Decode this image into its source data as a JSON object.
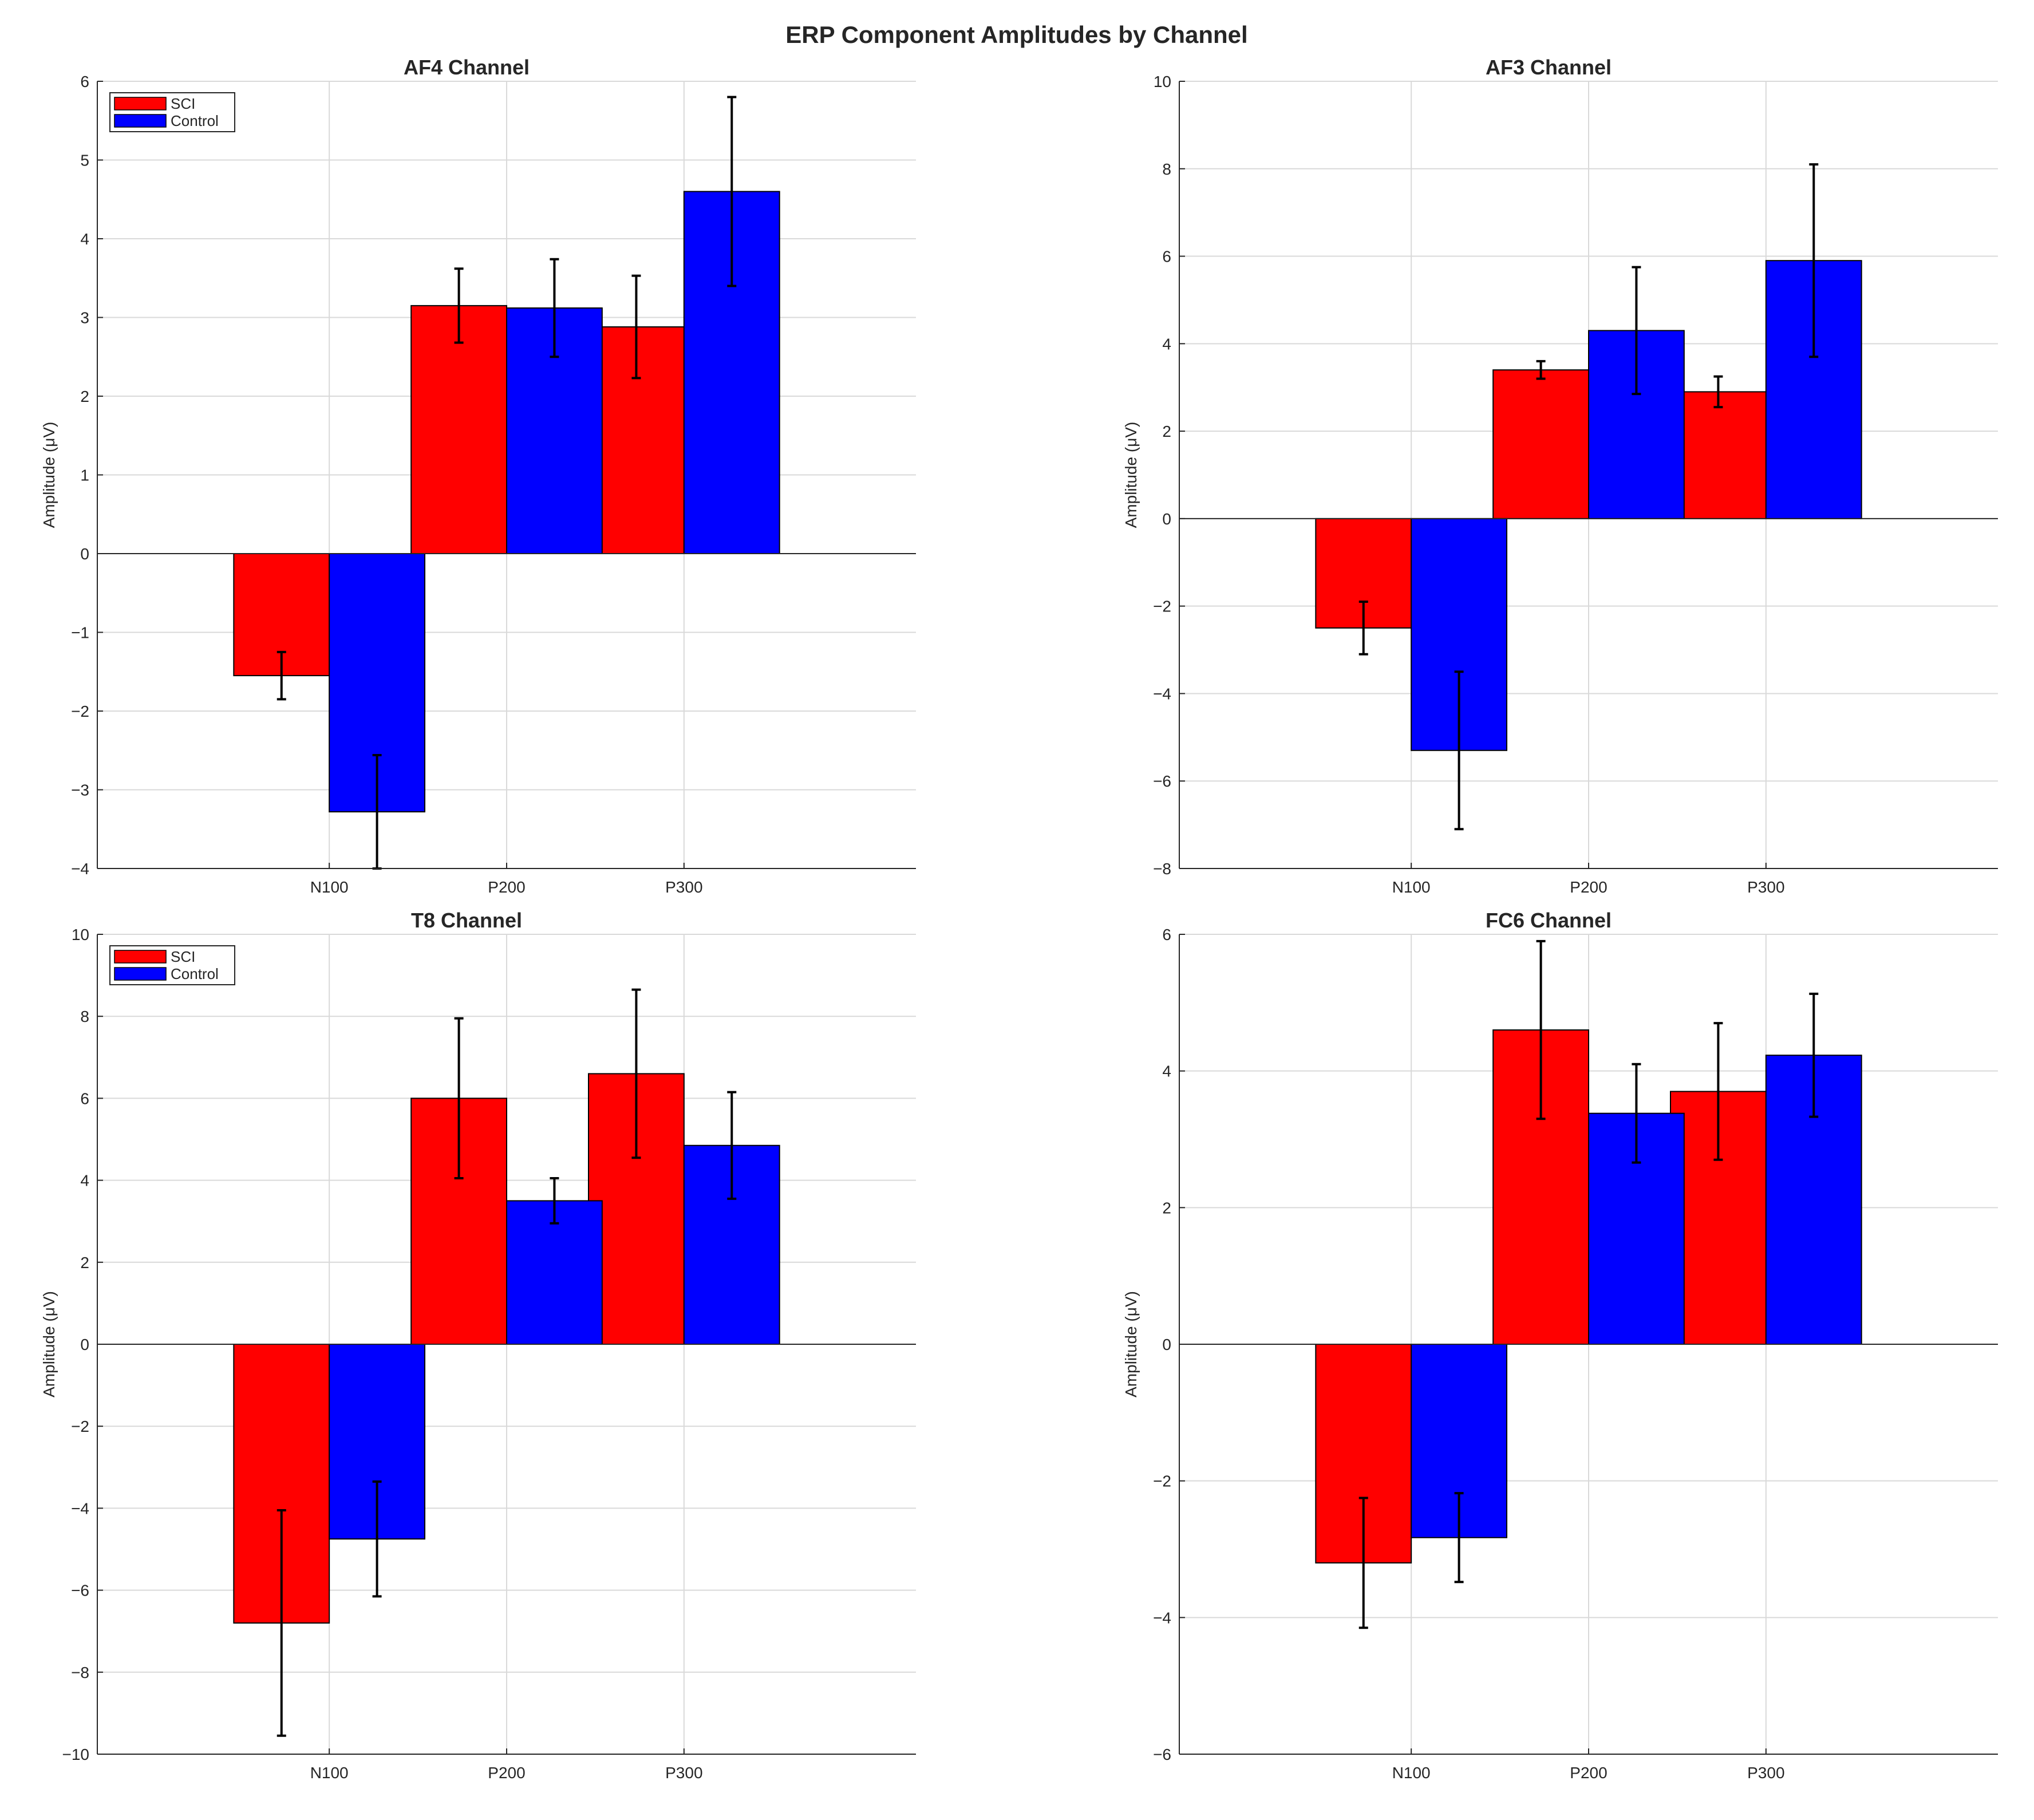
{
  "chart_data": {
    "type": "bar",
    "title": "ERP Component Amplitudes by Channel",
    "colors": {
      "SCI": "#ff0000",
      "Control": "#0000ff"
    },
    "subplots": [
      {
        "title": "AF4 Channel",
        "ylabel": "Amplitude (μV)",
        "ylim": [
          -4,
          6
        ],
        "yticks": [
          -4,
          -3,
          -2,
          -1,
          0,
          1,
          2,
          3,
          4,
          5,
          6
        ],
        "ytick_labels": [
          "−4",
          "−3",
          "−2",
          "−1",
          "0",
          "1",
          "2",
          "3",
          "4",
          "5",
          "6"
        ],
        "categories": [
          "N100",
          "P200",
          "P300"
        ],
        "legend": {
          "show": true,
          "position": "top-left",
          "entries": [
            "SCI",
            "Control"
          ]
        },
        "series": [
          {
            "name": "SCI",
            "values": [
              -1.55,
              3.15,
              2.88
            ],
            "errors": [
              0.3,
              0.47,
              0.65
            ]
          },
          {
            "name": "Control",
            "values": [
              -3.28,
              3.12,
              4.6
            ],
            "errors": [
              0.72,
              0.62,
              1.2
            ]
          }
        ]
      },
      {
        "title": "AF3 Channel",
        "ylabel": "Amplitude (μV)",
        "ylim": [
          -8,
          10
        ],
        "yticks": [
          -8,
          -6,
          -4,
          -2,
          0,
          2,
          4,
          6,
          8,
          10
        ],
        "ytick_labels": [
          "−8",
          "−6",
          "−4",
          "−2",
          "0",
          "2",
          "4",
          "6",
          "8",
          "10"
        ],
        "categories": [
          "N100",
          "P200",
          "P300"
        ],
        "legend": {
          "show": false,
          "position": "none",
          "entries": []
        },
        "series": [
          {
            "name": "SCI",
            "values": [
              -2.5,
              3.4,
              2.9
            ],
            "errors": [
              0.6,
              0.2,
              0.35
            ]
          },
          {
            "name": "Control",
            "values": [
              -5.3,
              4.3,
              5.9
            ],
            "errors": [
              1.8,
              1.45,
              2.2
            ]
          }
        ]
      },
      {
        "title": "T8 Channel",
        "ylabel": "Amplitude (μV)",
        "ylim": [
          -10,
          10
        ],
        "yticks": [
          -10,
          -8,
          -6,
          -4,
          -2,
          0,
          2,
          4,
          6,
          8,
          10
        ],
        "ytick_labels": [
          "−10",
          "−8",
          "−6",
          "−4",
          "−2",
          "0",
          "2",
          "4",
          "6",
          "8",
          "10"
        ],
        "categories": [
          "N100",
          "P200",
          "P300"
        ],
        "legend": {
          "show": true,
          "position": "top-left",
          "entries": [
            "SCI",
            "Control"
          ]
        },
        "series": [
          {
            "name": "SCI",
            "values": [
              -6.8,
              6.0,
              6.6
            ],
            "errors": [
              2.75,
              1.95,
              2.05
            ]
          },
          {
            "name": "Control",
            "values": [
              -4.75,
              3.5,
              4.85
            ],
            "errors": [
              1.4,
              0.55,
              1.3
            ]
          }
        ]
      },
      {
        "title": "FC6 Channel",
        "ylabel": "Amplitude (μV)",
        "ylim": [
          -6,
          6
        ],
        "yticks": [
          -6,
          -4,
          -2,
          0,
          2,
          4,
          6
        ],
        "ytick_labels": [
          "−6",
          "−4",
          "−2",
          "0",
          "2",
          "4",
          "6"
        ],
        "categories": [
          "N100",
          "P200",
          "P300"
        ],
        "legend": {
          "show": false,
          "position": "none",
          "entries": []
        },
        "series": [
          {
            "name": "SCI",
            "values": [
              -3.2,
              4.6,
              3.7
            ],
            "errors": [
              0.95,
              1.3,
              1.0
            ]
          },
          {
            "name": "Control",
            "values": [
              -2.83,
              3.38,
              4.23
            ],
            "errors": [
              0.65,
              0.72,
              0.9
            ]
          }
        ]
      }
    ]
  }
}
